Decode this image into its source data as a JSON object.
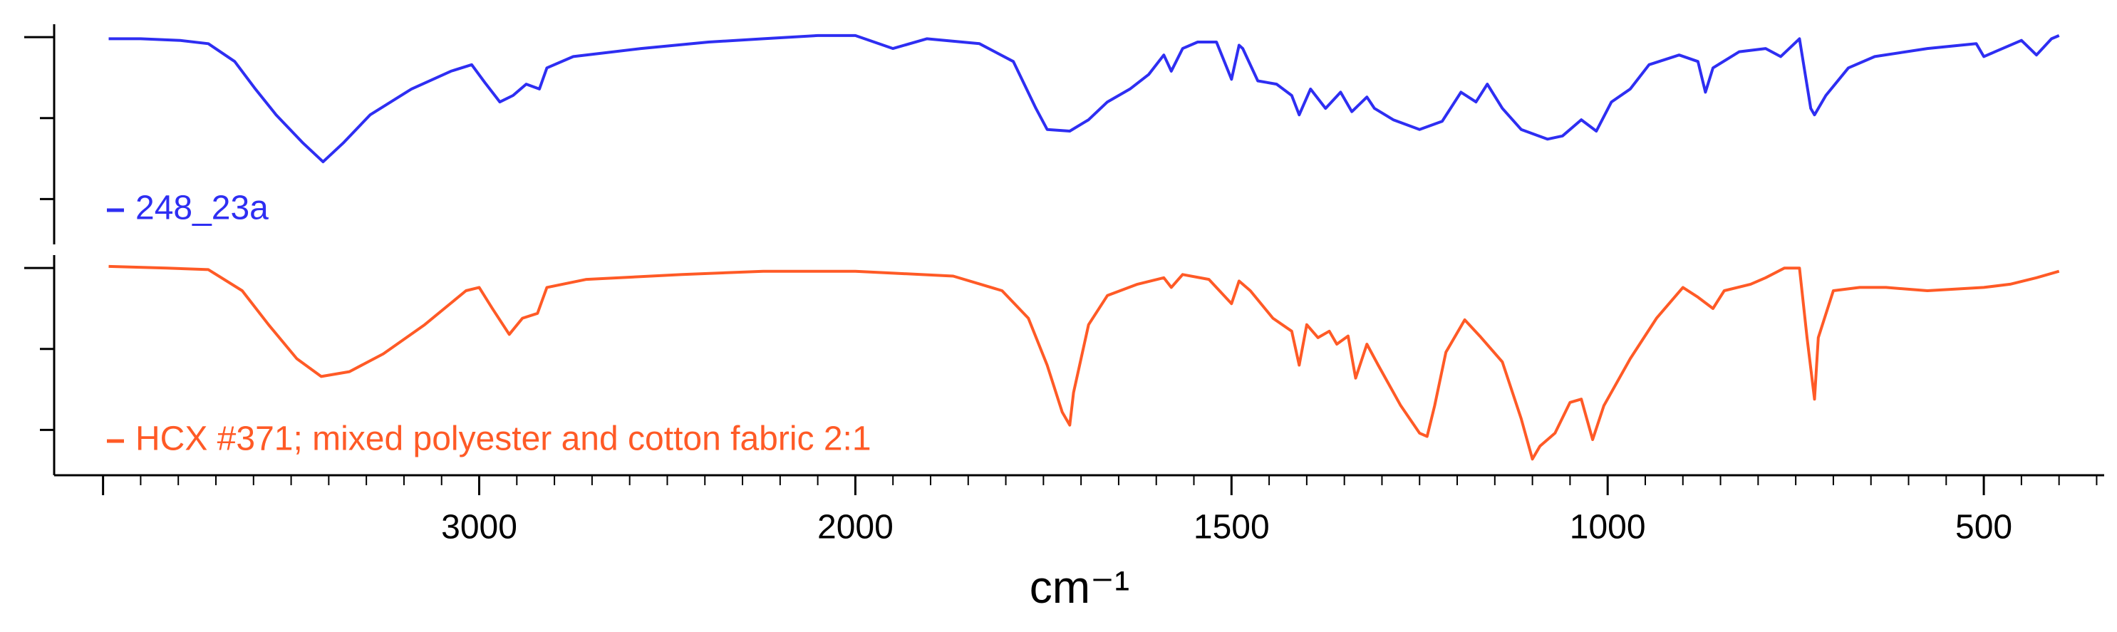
{
  "chart_data": {
    "type": "line",
    "xlabel": "cm⁻¹",
    "xlim": [
      4130,
      340
    ],
    "x_scale_break": 2000,
    "x_scale_factor": 2,
    "xticks": [
      {
        "value": 4000,
        "label": null
      },
      3000,
      2000,
      1500,
      1000,
      500
    ],
    "xminorticks": [
      3900,
      3800,
      3700,
      3600,
      3500,
      3400,
      3300,
      3200,
      3100,
      2900,
      2800,
      2700,
      2600,
      2500,
      2400,
      2300,
      2200,
      2100,
      1950,
      1900,
      1850,
      1800,
      1750,
      1700,
      1650,
      1600,
      1550,
      1450,
      1400,
      1350,
      1300,
      1250,
      1200,
      1150,
      1100,
      1050,
      950,
      900,
      850,
      800,
      750,
      700,
      650,
      600,
      550,
      450,
      400,
      350
    ],
    "panels": [
      {
        "ylim": [
          -28,
          108
        ],
        "yticks": [
          {
            "value": 0,
            "label": null
          },
          {
            "value": 50,
            "label": null
          },
          {
            "value": 100,
            "label": null
          }
        ]
      },
      {
        "ylim": [
          -28,
          108
        ],
        "yticks": [
          {
            "value": 0,
            "label": null
          },
          {
            "value": 50,
            "label": null
          },
          {
            "value": 100,
            "label": null
          }
        ]
      }
    ],
    "series": [
      {
        "name": "248_23a",
        "color": "#2e2ef2",
        "panel": 0,
        "x": [
          3985,
          3900,
          3795,
          3720,
          3650,
          3595,
          3540,
          3470,
          3415,
          3360,
          3290,
          3180,
          3075,
          3020,
          2985,
          2945,
          2910,
          2875,
          2840,
          2820,
          2750,
          2570,
          2390,
          2245,
          2100,
          2000,
          1950,
          1905,
          1835,
          1790,
          1760,
          1745,
          1715,
          1690,
          1665,
          1635,
          1610,
          1590,
          1580,
          1565,
          1545,
          1520,
          1500,
          1490,
          1485,
          1465,
          1440,
          1420,
          1410,
          1395,
          1375,
          1355,
          1340,
          1320,
          1310,
          1285,
          1250,
          1220,
          1195,
          1175,
          1160,
          1140,
          1115,
          1080,
          1060,
          1035,
          1015,
          995,
          970,
          945,
          905,
          880,
          870,
          860,
          825,
          790,
          770,
          745,
          730,
          725,
          710,
          680,
          645,
          575,
          510,
          500,
          485,
          450,
          430,
          410,
          400
        ],
        "values": [
          99,
          99,
          98,
          96,
          85,
          68,
          52,
          35,
          23,
          35,
          52,
          68,
          79,
          83,
          72,
          60,
          64,
          71,
          68,
          81,
          88,
          93,
          97,
          99,
          101,
          101,
          93,
          99,
          96,
          85,
          56,
          43,
          42,
          49,
          60,
          68,
          77,
          89,
          79,
          93,
          97,
          97,
          74,
          95,
          93,
          73,
          71,
          64,
          52,
          68,
          56,
          66,
          54,
          63,
          56,
          49,
          43,
          48,
          66,
          60,
          71,
          56,
          43,
          37,
          39,
          49,
          42,
          60,
          68,
          83,
          89,
          85,
          66,
          81,
          91,
          93,
          88,
          99,
          56,
          52,
          64,
          81,
          88,
          93,
          96,
          88,
          91,
          98,
          89,
          99,
          101
        ]
      },
      {
        "name": "HCX #371; mixed polyester and cotton fabric 2:1",
        "color": "#ff5a26",
        "panel": 1,
        "x": [
          3985,
          3830,
          3720,
          3630,
          3560,
          3485,
          3420,
          3345,
          3255,
          3145,
          3035,
          3000,
          2965,
          2920,
          2885,
          2845,
          2820,
          2715,
          2460,
          2245,
          2000,
          1870,
          1805,
          1770,
          1745,
          1725,
          1715,
          1710,
          1690,
          1665,
          1625,
          1590,
          1580,
          1565,
          1530,
          1500,
          1490,
          1475,
          1445,
          1420,
          1410,
          1400,
          1385,
          1370,
          1360,
          1345,
          1335,
          1320,
          1305,
          1275,
          1250,
          1240,
          1230,
          1215,
          1190,
          1170,
          1140,
          1115,
          1100,
          1090,
          1070,
          1050,
          1035,
          1020,
          1005,
          970,
          935,
          900,
          880,
          860,
          845,
          810,
          790,
          765,
          745,
          735,
          725,
          720,
          700,
          665,
          630,
          575,
          500,
          465,
          430,
          400
        ],
        "values": [
          101,
          100,
          99,
          86,
          65,
          44,
          33,
          36,
          47,
          65,
          86,
          88,
          75,
          59,
          69,
          72,
          88,
          93,
          96,
          98,
          98,
          95,
          86,
          69,
          40,
          11,
          3,
          23,
          65,
          83,
          90,
          94,
          88,
          96,
          93,
          78,
          92,
          86,
          69,
          61,
          40,
          65,
          57,
          61,
          53,
          58,
          32,
          53,
          40,
          15,
          -2,
          -4,
          15,
          48,
          68,
          58,
          42,
          7,
          -18,
          -10,
          -2,
          17,
          19,
          -6,
          15,
          44,
          69,
          88,
          82,
          75,
          86,
          90,
          94,
          100,
          100,
          57,
          19,
          57,
          86,
          88,
          88,
          86,
          88,
          90,
          94,
          98
        ]
      }
    ]
  }
}
